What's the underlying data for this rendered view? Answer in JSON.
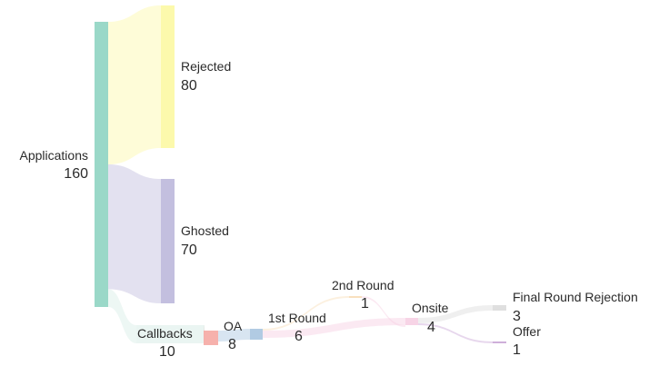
{
  "chart_data": {
    "type": "sankey",
    "nodes": [
      {
        "id": "applications",
        "label": "Applications",
        "value": "160",
        "color": "#8fd4c2"
      },
      {
        "id": "rejected",
        "label": "Rejected",
        "value": "80",
        "color": "#fcf8a3"
      },
      {
        "id": "ghosted",
        "label": "Ghosted",
        "value": "70",
        "color": "#bcb8dc"
      },
      {
        "id": "callbacks",
        "label": "Callbacks",
        "value": "10",
        "color": "#d5ece5"
      },
      {
        "id": "oa",
        "label": "OA",
        "value": "8",
        "color": "#f5a9a3"
      },
      {
        "id": "first_round",
        "label": "1st Round",
        "value": "6",
        "color": "#a9c5e0"
      },
      {
        "id": "second_round",
        "label": "2nd Round",
        "value": "1",
        "color": "#f8ddb7"
      },
      {
        "id": "onsite",
        "label": "Onsite",
        "value": "4",
        "color": "#f6cfe3"
      },
      {
        "id": "final_round_rejection",
        "label": "Final Round Rejection",
        "value": "3",
        "color": "#dcdcdc"
      },
      {
        "id": "offer",
        "label": "Offer",
        "value": "1",
        "color": "#c9a6d6"
      }
    ],
    "links": [
      {
        "source": "applications",
        "target": "rejected",
        "value": 80
      },
      {
        "source": "applications",
        "target": "ghosted",
        "value": 70
      },
      {
        "source": "applications",
        "target": "callbacks",
        "value": 10
      },
      {
        "source": "callbacks",
        "target": "oa",
        "value": 8
      },
      {
        "source": "oa",
        "target": "first_round",
        "value": 6
      },
      {
        "source": "first_round",
        "target": "second_round",
        "value": 1
      },
      {
        "source": "first_round",
        "target": "onsite",
        "value": 4
      },
      {
        "source": "second_round",
        "target": "onsite",
        "value": 1
      },
      {
        "source": "onsite",
        "target": "final_round_rejection",
        "value": 3
      },
      {
        "source": "onsite",
        "target": "offer",
        "value": 1
      }
    ]
  }
}
